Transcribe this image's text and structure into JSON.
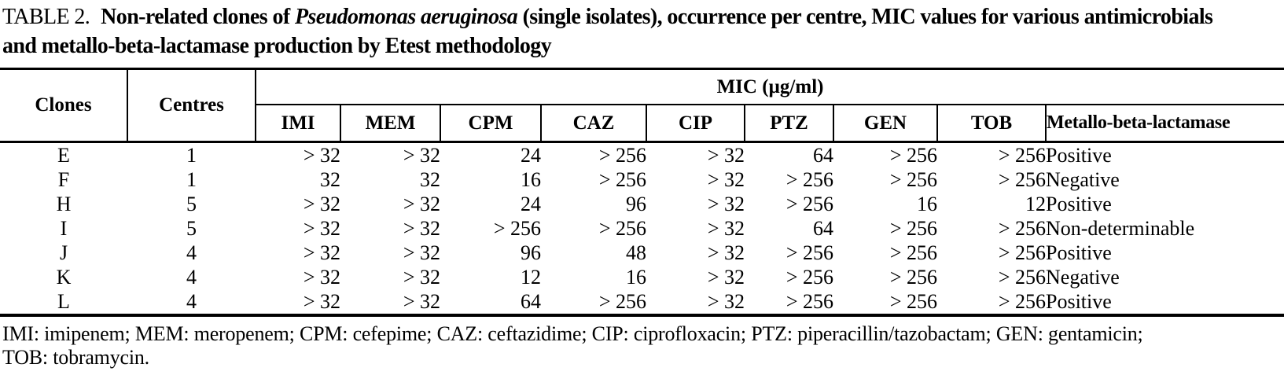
{
  "caption": {
    "label": "TABLE 2.",
    "line1_bold_before_italic": "Non-related clones of ",
    "line1_italic": "Pseudomonas aeruginosa",
    "line1_after_italic": " (single isolates), occurrence per centre, MIC values for various antimicrobials",
    "line2": "and metallo-beta-lactamase production by Etest methodology"
  },
  "table": {
    "header": {
      "clones": "Clones",
      "centres": "Centres",
      "mic_group": "MIC (µg/ml)",
      "antibiotics": [
        "IMI",
        "MEM",
        "CPM",
        "CAZ",
        "CIP",
        "PTZ",
        "GEN",
        "TOB"
      ],
      "mbl": "Metallo-beta-lactamase"
    },
    "column_keys": [
      "clone",
      "centre",
      "imi",
      "mem",
      "cpm",
      "caz",
      "cip",
      "ptz",
      "gen",
      "tob",
      "mbl"
    ],
    "rows": [
      [
        "E",
        "1",
        "> 32",
        "> 32",
        "24",
        "> 256",
        "> 32",
        "64",
        "> 256",
        "> 256",
        "Positive"
      ],
      [
        "F",
        "1",
        "32",
        "32",
        "16",
        "> 256",
        "> 32",
        "> 256",
        "> 256",
        "> 256",
        "Negative"
      ],
      [
        "H",
        "5",
        "> 32",
        "> 32",
        "24",
        "96",
        "> 32",
        "> 256",
        "16",
        "12",
        "Positive"
      ],
      [
        "I",
        "5",
        "> 32",
        "> 32",
        "> 256",
        "> 256",
        "> 32",
        "64",
        "> 256",
        "> 256",
        "Non-determinable"
      ],
      [
        "J",
        "4",
        "> 32",
        "> 32",
        "96",
        "48",
        "> 32",
        "> 256",
        "> 256",
        "> 256",
        "Positive"
      ],
      [
        "K",
        "4",
        "> 32",
        "> 32",
        "12",
        "16",
        "> 32",
        "> 256",
        "> 256",
        "> 256",
        "Negative"
      ],
      [
        "L",
        "4",
        "> 32",
        "> 32",
        "64",
        "> 256",
        "> 32",
        "> 256",
        "> 256",
        "> 256",
        "Positive"
      ]
    ]
  },
  "footnote": {
    "line1": "IMI: imipenem; MEM: meropenem; CPM: cefepime; CAZ: ceftazidime; CIP: ciprofloxacin; PTZ: piperacillin/tazobactam; GEN: gentamicin;",
    "line2": "TOB: tobramycin."
  }
}
